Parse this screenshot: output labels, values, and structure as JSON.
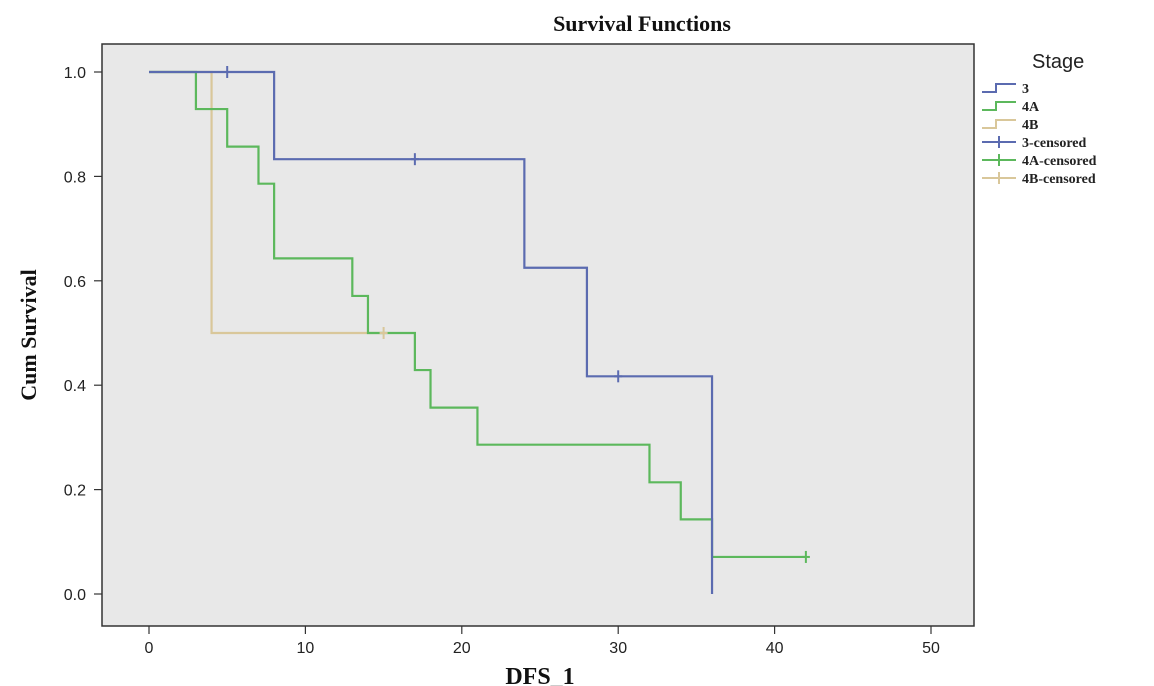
{
  "chart_data": {
    "type": "line",
    "step": true,
    "title": "Survival Functions",
    "xlabel": "DFS_1",
    "ylabel": "Cum Survival",
    "xlim": [
      0,
      50
    ],
    "ylim": [
      0.0,
      1.0
    ],
    "x_ticks": [
      0,
      10,
      20,
      30,
      40,
      50
    ],
    "x_tick_labels": [
      "0",
      "10",
      "20",
      "30",
      "40",
      "50"
    ],
    "y_ticks": [
      0.0,
      0.2,
      0.4,
      0.6,
      0.8,
      1.0
    ],
    "y_tick_labels": [
      "0.0",
      "0.2",
      "0.4",
      "0.6",
      "0.8",
      "1.0"
    ],
    "grid": false,
    "plot_background": "#e8e8e8",
    "legend": {
      "title": "Stage",
      "position": "right",
      "entries": [
        "3",
        "4A",
        "4B",
        "3-censored",
        "4A-censored",
        "4B-censored"
      ]
    },
    "series": [
      {
        "name": "3",
        "color": "#5b6bb0",
        "x": [
          0,
          8,
          24,
          28,
          36
        ],
        "y": [
          1.0,
          0.833,
          0.625,
          0.417,
          0.0
        ],
        "end_x": 36,
        "censored": [
          {
            "x": 5,
            "y": 1.0
          },
          {
            "x": 17,
            "y": 0.833
          },
          {
            "x": 30,
            "y": 0.417
          }
        ]
      },
      {
        "name": "4A",
        "color": "#5cb85c",
        "x": [
          0,
          3,
          5,
          7,
          8,
          13,
          14,
          17,
          18,
          21,
          32,
          34,
          36
        ],
        "y": [
          1.0,
          0.929,
          0.857,
          0.786,
          0.643,
          0.571,
          0.5,
          0.429,
          0.357,
          0.286,
          0.214,
          0.143,
          0.071
        ],
        "end_x": 42,
        "censored": [
          {
            "x": 42,
            "y": 0.071
          }
        ]
      },
      {
        "name": "4B",
        "color": "#d9c79a",
        "x": [
          0,
          4
        ],
        "y": [
          1.0,
          0.5
        ],
        "end_x": 15,
        "censored": [
          {
            "x": 15,
            "y": 0.5
          }
        ]
      }
    ]
  }
}
